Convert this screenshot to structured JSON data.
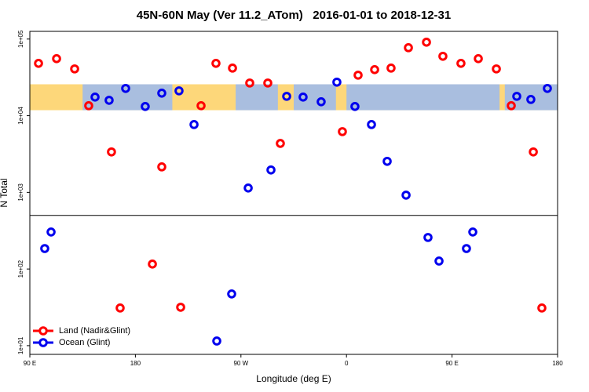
{
  "chart_data": {
    "type": "scatter",
    "title": "45N-60N May (Ver 11.2_ATom)   2016-01-01 to 2018-12-31",
    "x_label": "Longitude (deg E)",
    "y_label": "N Total",
    "log_y": true,
    "xlim": [
      90,
      540
    ],
    "ylim": [
      7.7,
      126000
    ],
    "xticks": [
      {
        "value": 90,
        "label": "90 E"
      },
      {
        "value": 180,
        "label": "180"
      },
      {
        "value": 270,
        "label": "90 W"
      },
      {
        "value": 360,
        "label": "0"
      },
      {
        "value": 450,
        "label": "90 E"
      },
      {
        "value": 540,
        "label": "180"
      }
    ],
    "yticks": [
      {
        "value": 10,
        "label": "1e+01"
      },
      {
        "value": 100,
        "label": "1e+02"
      },
      {
        "value": 1000,
        "label": "1e+03"
      },
      {
        "value": 10000,
        "label": "1e+04"
      },
      {
        "value": 100000,
        "label": "1e+05"
      }
    ],
    "reference_line": 500,
    "map_band": [
      11800,
      25700
    ],
    "legend": "bottom-left",
    "series": [
      {
        "name": "Land (Nadir&Glint)",
        "color": "#ff0000",
        "x": [
          97.4,
          112.8,
          128.2,
          140.2,
          159.6,
          202.5,
          194.5,
          167.0,
          218.6,
          236.0,
          248.7,
          262.8,
          277.5,
          292.9,
          303.6,
          356.5,
          369.9,
          384.0,
          398.0,
          412.8,
          428.2,
          442.2,
          457.6,
          472.4,
          487.8,
          500.5,
          519.3,
          526.6
        ],
        "values": [
          48200,
          55500,
          40800,
          13500,
          3370,
          2150,
          116,
          31,
          31.7,
          13500,
          48200,
          41800,
          26700,
          26700,
          4350,
          6200,
          33800,
          39900,
          41800,
          77100,
          91000,
          59600,
          48200,
          55500,
          40800,
          13500,
          3370,
          31
        ]
      },
      {
        "name": "Ocean (Glint)",
        "color": "#0000ee",
        "x": [
          102.7,
          108.1,
          145.6,
          157.6,
          171.7,
          188.4,
          202.5,
          217.2,
          230.0,
          249.4,
          262.1,
          276.2,
          295.6,
          309.0,
          323.0,
          338.4,
          351.8,
          367.2,
          381.3,
          394.7,
          410.8,
          429.5,
          438.9,
          462.3,
          467.7,
          505.2,
          517.2,
          531.3
        ],
        "values": [
          185,
          304,
          17500,
          15900,
          22700,
          13200,
          19700,
          21100,
          7670,
          11.5,
          47.3,
          1140,
          1960,
          17900,
          17500,
          15200,
          27400,
          13200,
          7670,
          2540,
          920,
          258,
          127,
          185,
          304,
          17900,
          16300,
          22700
        ]
      }
    ]
  }
}
